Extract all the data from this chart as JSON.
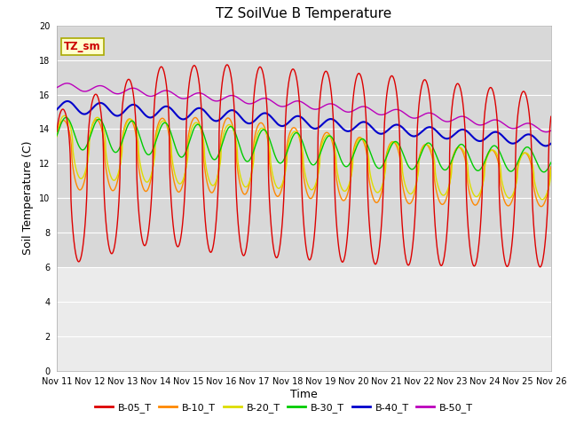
{
  "title": "TZ SoilVue B Temperature",
  "xlabel": "Time",
  "ylabel": "Soil Temperature (C)",
  "ylim": [
    0,
    20
  ],
  "yticks": [
    0,
    2,
    4,
    6,
    8,
    10,
    12,
    14,
    16,
    18,
    20
  ],
  "x_tick_labels": [
    "Nov 11",
    "Nov 12",
    "Nov 13",
    "Nov 14",
    "Nov 15",
    "Nov 16",
    "Nov 17",
    "Nov 18",
    "Nov 19",
    "Nov 20",
    "Nov 21",
    "Nov 22",
    "Nov 23",
    "Nov 24",
    "Nov 25",
    "Nov 26"
  ],
  "annotation_text": "TZ_sm",
  "annotation_color": "#cc0000",
  "annotation_bg": "#ffffcc",
  "annotation_border": "#aaaa00",
  "series_colors": {
    "B-05_T": "#dd0000",
    "B-10_T": "#ff8800",
    "B-20_T": "#dddd00",
    "B-30_T": "#00cc00",
    "B-40_T": "#0000cc",
    "B-50_T": "#bb00bb"
  },
  "upper_bg": "#d8d8d8",
  "lower_bg": "#ebebeb",
  "grid_color": "#ffffff",
  "fig_bg": "#ffffff",
  "data_bg_threshold": 6.0
}
